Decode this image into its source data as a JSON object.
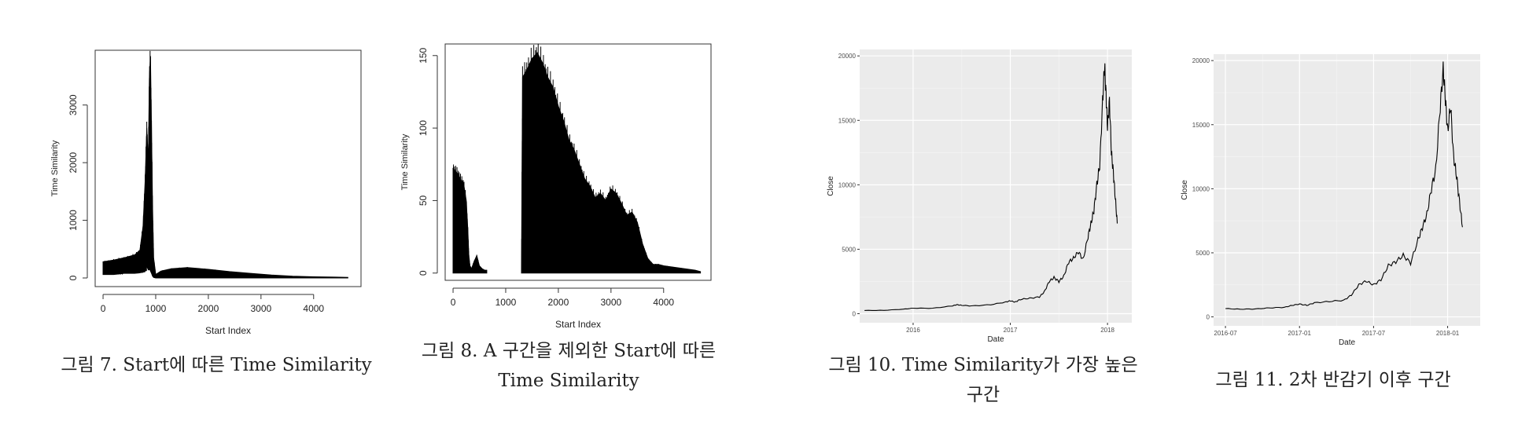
{
  "figures": [
    {
      "caption": "그림 7. Start에 따른 Time Similarity",
      "chart_data": {
        "type": "area",
        "style": "base-r",
        "xlabel": "Start Index",
        "ylabel": "Time Similarity",
        "xlim": [
          -150,
          4900
        ],
        "ylim": [
          -150,
          3950
        ],
        "xticks": [
          0,
          1000,
          2000,
          3000,
          4000
        ],
        "yticks": [
          0,
          1000,
          2000,
          3000
        ],
        "x": [
          0,
          200,
          400,
          600,
          700,
          760,
          800,
          830,
          860,
          880,
          900,
          920,
          940,
          960,
          1000,
          1100,
          1300,
          1600,
          2000,
          2400,
          2800,
          3200,
          3600,
          4000,
          4400,
          4650
        ],
        "upper": [
          280,
          310,
          350,
          400,
          480,
          900,
          1700,
          2600,
          2000,
          3450,
          3850,
          2600,
          1200,
          350,
          60,
          120,
          160,
          180,
          150,
          110,
          80,
          50,
          30,
          20,
          15,
          10
        ],
        "lower": [
          60,
          60,
          80,
          80,
          90,
          100,
          120,
          200,
          140,
          160,
          120,
          80,
          30,
          10,
          0,
          0,
          0,
          0,
          0,
          0,
          0,
          0,
          0,
          0,
          0,
          0
        ]
      }
    },
    {
      "caption": "그림 8. A 구간을 제외한 Start에 따른 Time Similarity",
      "chart_data": {
        "type": "area",
        "style": "base-r",
        "xlabel": "Start Index",
        "ylabel": "Time Similarity",
        "xlim": [
          -150,
          4900
        ],
        "ylim": [
          -5,
          158
        ],
        "xticks": [
          0,
          1000,
          2000,
          3000,
          4000
        ],
        "yticks": [
          0,
          50,
          100,
          150
        ],
        "segments": [
          {
            "x": [
              0,
              50,
              100,
              150,
              200,
              250,
              280,
              300,
              320,
              350,
              400,
              450,
              500,
              550,
              600,
              640
            ],
            "y": [
              72,
              70,
              68,
              64,
              62,
              50,
              30,
              12,
              5,
              3,
              8,
              12,
              5,
              3,
              2,
              2
            ]
          },
          {
            "x": [
              1300,
              1320,
              1400,
              1500,
              1600,
              1700,
              1800,
              1900,
              2000,
              2100,
              2200,
              2300,
              2400,
              2500,
              2600,
              2700,
              2800,
              2900,
              3000,
              3100,
              3200,
              3300,
              3400,
              3500,
              3600,
              3700,
              3800,
              3900,
              4000,
              4200,
              4400,
              4600,
              4700
            ],
            "y": [
              0,
              135,
              140,
              148,
              152,
              145,
              135,
              128,
              115,
              105,
              92,
              85,
              75,
              65,
              60,
              52,
              55,
              50,
              58,
              55,
              48,
              40,
              42,
              35,
              20,
              10,
              6,
              6,
              5,
              4,
              3,
              2,
              1
            ]
          }
        ]
      }
    },
    {
      "caption": "그림 10. Time Similarity가 가장 높은 구간",
      "chart_data": {
        "type": "line",
        "style": "ggplot",
        "xlabel": "Date",
        "ylabel": "Close",
        "xlim": [
          2015.45,
          2018.25
        ],
        "ylim": [
          -700,
          20500
        ],
        "xticks": [
          2016,
          2017,
          2018
        ],
        "xtick_labels": [
          "2016",
          "2017",
          "2018"
        ],
        "yticks": [
          0,
          5000,
          10000,
          15000,
          20000
        ],
        "x": [
          2015.5,
          2015.7,
          2015.9,
          2016.0,
          2016.2,
          2016.4,
          2016.45,
          2016.5,
          2016.6,
          2016.8,
          2016.95,
          2017.0,
          2017.05,
          2017.1,
          2017.2,
          2017.3,
          2017.35,
          2017.4,
          2017.45,
          2017.5,
          2017.55,
          2017.6,
          2017.65,
          2017.7,
          2017.75,
          2017.8,
          2017.83,
          2017.86,
          2017.89,
          2017.92,
          2017.95,
          2017.97,
          2017.985,
          2018.0,
          2018.02,
          2018.04,
          2018.06,
          2018.08,
          2018.1
        ],
        "y": [
          250,
          260,
          350,
          430,
          420,
          600,
          700,
          650,
          600,
          700,
          900,
          1000,
          900,
          1100,
          1200,
          1300,
          1700,
          2500,
          2800,
          2500,
          2900,
          4000,
          4300,
          4800,
          4200,
          6000,
          7000,
          8000,
          10000,
          11500,
          16500,
          19300,
          17000,
          14500,
          16500,
          12500,
          11000,
          9000,
          7000
        ]
      }
    },
    {
      "caption": "그림 11. 2차 반감기 이후 구간",
      "chart_data": {
        "type": "line",
        "style": "ggplot",
        "xlabel": "Date",
        "ylabel": "Close",
        "xlim": [
          2016.42,
          2018.22
        ],
        "ylim": [
          -700,
          20500
        ],
        "xticks": [
          2016.5,
          2017.0,
          2017.5,
          2018.0
        ],
        "xtick_labels": [
          "2016-07",
          "2017-01",
          "2017-07",
          "2018-01"
        ],
        "yticks": [
          0,
          5000,
          10000,
          15000,
          20000
        ],
        "x": [
          2016.5,
          2016.6,
          2016.7,
          2016.8,
          2016.9,
          2016.95,
          2017.0,
          2017.05,
          2017.1,
          2017.2,
          2017.3,
          2017.35,
          2017.4,
          2017.45,
          2017.5,
          2017.55,
          2017.6,
          2017.65,
          2017.7,
          2017.75,
          2017.8,
          2017.83,
          2017.86,
          2017.89,
          2017.92,
          2017.95,
          2017.97,
          2017.985,
          2018.0,
          2018.02,
          2018.04,
          2018.06,
          2018.08,
          2018.1
        ],
        "y": [
          650,
          600,
          620,
          700,
          750,
          900,
          1000,
          900,
          1100,
          1200,
          1300,
          1700,
          2500,
          2800,
          2500,
          2900,
          4000,
          4300,
          4800,
          4200,
          6000,
          7000,
          8000,
          10000,
          11500,
          16500,
          19300,
          17000,
          14500,
          16500,
          12500,
          11000,
          9000,
          7000
        ]
      }
    }
  ]
}
